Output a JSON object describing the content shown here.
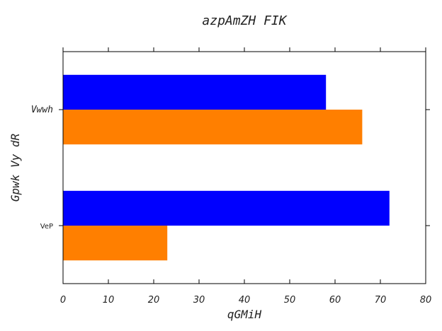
{
  "chart_data": {
    "type": "bar",
    "orientation": "horizontal",
    "title": "azpAmZH FIK",
    "xlabel": "qGMiH",
    "ylabel": "Gpwk Vy dR",
    "categories": [
      "VeP",
      "Vwwh"
    ],
    "series": [
      {
        "values": [
          23,
          66
        ],
        "color": "#ff7f00"
      },
      {
        "values": [
          72,
          58
        ],
        "color": "#0000ff"
      }
    ],
    "xlim": [
      0,
      80
    ],
    "xticks": [
      0,
      10,
      20,
      30,
      40,
      50,
      60,
      70,
      80
    ],
    "grid": false
  }
}
